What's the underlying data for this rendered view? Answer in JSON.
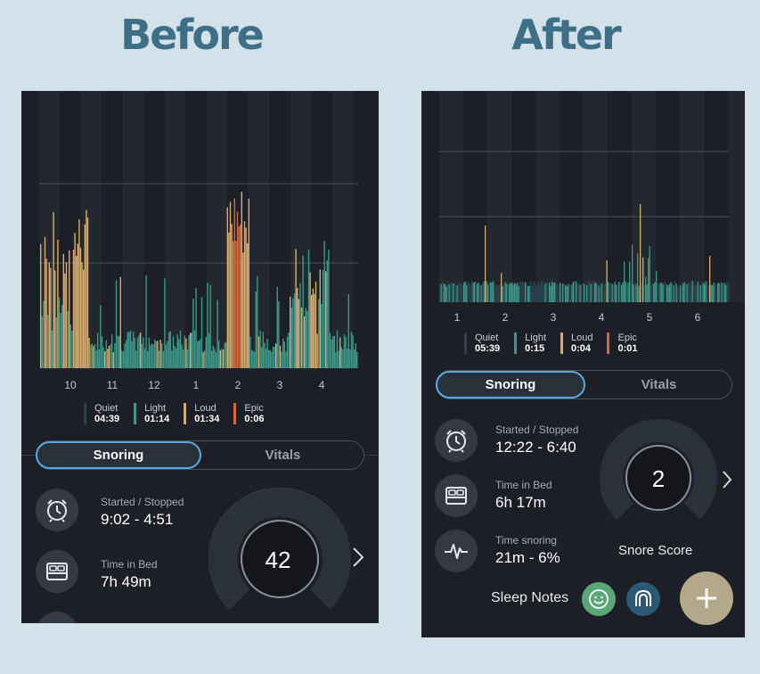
{
  "headings": {
    "before": "Before",
    "after": "After"
  },
  "colors": {
    "quiet": "#2c4452",
    "light": "#3b9888",
    "loud": "#d9ac6e",
    "epic": "#d9683a",
    "panel": "#1c1f25",
    "accent": "#56a9df",
    "page_bg": "#d3e2ea"
  },
  "before": {
    "chart_data": {
      "type": "bar",
      "x_ticks": [
        "10",
        "11",
        "12",
        "1",
        "2",
        "3",
        "4"
      ],
      "series": [
        {
          "name": "Quiet",
          "values": []
        },
        {
          "name": "Light",
          "values": []
        },
        {
          "name": "Loud",
          "values": []
        },
        {
          "name": "Epic",
          "values": []
        }
      ]
    },
    "legend": [
      {
        "name": "Quiet",
        "time": "04:39",
        "color_key": "quiet"
      },
      {
        "name": "Light",
        "time": "01:14",
        "color_key": "light"
      },
      {
        "name": "Loud",
        "time": "01:34",
        "color_key": "loud"
      },
      {
        "name": "Epic",
        "time": "0:06",
        "color_key": "epic"
      }
    ],
    "tabs": {
      "snoring": "Snoring",
      "vitals": "Vitals"
    },
    "stats": {
      "started_label": "Started / Stopped",
      "started_value": "9:02 - 4:51",
      "bed_label": "Time in Bed",
      "bed_value": "7h 49m"
    },
    "score": "42",
    "icons": [
      "alarm-clock-icon",
      "bed-icon",
      "chevron-right-icon"
    ]
  },
  "after": {
    "chart_data": {
      "type": "bar",
      "x_ticks": [
        "1",
        "2",
        "3",
        "4",
        "5",
        "6"
      ],
      "series": [
        {
          "name": "Quiet",
          "values": []
        },
        {
          "name": "Light",
          "values": []
        },
        {
          "name": "Loud",
          "values": []
        },
        {
          "name": "Epic",
          "values": []
        }
      ]
    },
    "legend": [
      {
        "name": "Quiet",
        "time": "05:39",
        "color_key": "quiet"
      },
      {
        "name": "Light",
        "time": "0:15",
        "color_key": "light"
      },
      {
        "name": "Loud",
        "time": "0:04",
        "color_key": "loud"
      },
      {
        "name": "Epic",
        "time": "0:01",
        "color_key": "epic"
      }
    ],
    "tabs": {
      "snoring": "Snoring",
      "vitals": "Vitals"
    },
    "stats": {
      "started_label": "Started / Stopped",
      "started_value": "12:22 - 6:40",
      "bed_label": "Time in Bed",
      "bed_value": "6h 17m",
      "snoring_label": "Time snoring",
      "snoring_value": "21m - 6%"
    },
    "score": "2",
    "score_label": "Snore Score",
    "sleep_notes": "Sleep Notes",
    "icons": [
      "alarm-clock-icon",
      "bed-icon",
      "heartbeat-icon",
      "smiley-icon",
      "mouthguard-icon",
      "plus-icon",
      "chevron-right-icon"
    ]
  }
}
